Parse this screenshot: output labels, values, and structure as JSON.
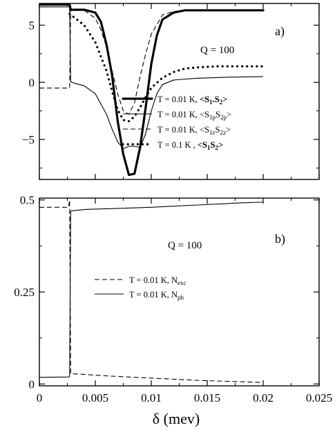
{
  "chart_data": [
    {
      "type": "line",
      "panel_label": "a)",
      "annotation": "Q = 100",
      "xlim": [
        0,
        0.025
      ],
      "ylim": [
        -8.5,
        6.9
      ],
      "x_ticks": [
        0,
        0.005,
        0.01,
        0.015,
        0.02,
        0.025
      ],
      "y_ticks": [
        5,
        0,
        -5
      ],
      "y_tick_labels": [
        "5",
        "0",
        "−5"
      ],
      "legend_position": "lower-right",
      "series": [
        {
          "legend": {
            "prefix": "T = 0.01 K,  ",
            "base1": "S",
            "sub1": "1",
            "mid": ".",
            "base2": "S",
            "sub2": "2",
            "bold": true
          },
          "style": "thick-solid",
          "x": [
            0,
            0.0027,
            0.0028,
            0.004,
            0.005,
            0.0055,
            0.006,
            0.0065,
            0.007,
            0.0075,
            0.008,
            0.0085,
            0.009,
            0.0095,
            0.01,
            0.0105,
            0.011,
            0.012,
            0.013,
            0.015,
            0.02
          ],
          "y": [
            6.8,
            6.8,
            6.35,
            6.35,
            6.1,
            5.3,
            3.3,
            0.6,
            -3.4,
            -6.3,
            -8.1,
            -8.0,
            -5.7,
            -2.2,
            1.6,
            4.1,
            5.5,
            6.1,
            6.3,
            6.3,
            6.3
          ]
        },
        {
          "legend": {
            "prefix": "T = 0.01 K, ",
            "base1": "S",
            "sub1": "1p",
            "mid": "",
            "base2": "S",
            "sub2": "2p",
            "bold": false
          },
          "style": "thin-solid",
          "x": [
            0,
            0.0026,
            0.0027,
            0.0028,
            0.0032,
            0.004,
            0.005,
            0.006,
            0.0065,
            0.007,
            0.0075,
            0.008,
            0.0085,
            0.009,
            0.0095,
            0.01,
            0.0105,
            0.011,
            0.012,
            0.014,
            0.017,
            0.02
          ],
          "y": [
            6.6,
            6.6,
            6.6,
            0.05,
            -0.1,
            -0.3,
            -1.0,
            -2.8,
            -4.1,
            -5.2,
            -5.8,
            -5.6,
            -5.6,
            -5.7,
            -4.5,
            -2.5,
            -1.0,
            -0.2,
            0.2,
            0.35,
            0.45,
            0.5
          ]
        },
        {
          "legend": {
            "prefix": "T = 0.01 K, ",
            "base1": "S",
            "sub1": "1z",
            "mid": "",
            "base2": "S",
            "sub2": "2z",
            "bold": false
          },
          "style": "dashed",
          "x": [
            0,
            0.0027,
            0.0028,
            0.004,
            0.005,
            0.0055,
            0.006,
            0.0065,
            0.007,
            0.0075,
            0.008,
            0.0085,
            0.009,
            0.0095,
            0.01,
            0.011,
            0.012,
            0.013,
            0.015,
            0.02
          ],
          "y": [
            -0.5,
            -0.5,
            6.3,
            6.3,
            5.6,
            4.6,
            3.1,
            1.0,
            -1.0,
            -2.5,
            -2.8,
            -1.8,
            0.5,
            2.5,
            4.2,
            5.9,
            6.2,
            6.3,
            6.3,
            6.3
          ]
        },
        {
          "legend": {
            "prefix": "T = 0.1 K ,  ",
            "base1": "S",
            "sub1": "1",
            "mid": "",
            "base2": "S",
            "sub2": "2",
            "bold": true
          },
          "style": "dotted",
          "x": [
            0.0027,
            0.004,
            0.005,
            0.006,
            0.0065,
            0.007,
            0.0075,
            0.008,
            0.0085,
            0.009,
            0.0095,
            0.01,
            0.011,
            0.012,
            0.013,
            0.014,
            0.016,
            0.018,
            0.02
          ],
          "y": [
            6.0,
            5.0,
            3.5,
            1.0,
            -0.8,
            -2.4,
            -3.3,
            -3.4,
            -3.0,
            -2.2,
            -1.3,
            -0.5,
            0.4,
            0.9,
            1.2,
            1.3,
            1.4,
            1.4,
            1.4
          ]
        }
      ]
    },
    {
      "type": "line",
      "panel_label": "b)",
      "annotation": "Q = 100",
      "xlabel": "δ  (mev)",
      "xlim": [
        0,
        0.025
      ],
      "ylim": [
        -0.005,
        0.505
      ],
      "x_ticks": [
        0,
        0.005,
        0.01,
        0.015,
        0.02,
        0.025
      ],
      "x_tick_labels": [
        "0",
        "0.005",
        "0.01",
        "0.015",
        "0.02",
        "0.025"
      ],
      "y_ticks": [
        0,
        0.25,
        0.5
      ],
      "y_tick_labels": [
        "0",
        "0.25",
        "0.5"
      ],
      "legend_position": "center-right",
      "series": [
        {
          "legend": {
            "prefix": "T = 0.01 K, ",
            "base": "N",
            "sub": "exc"
          },
          "style": "dashed",
          "x": [
            0,
            0.0026,
            0.0027,
            0.0028,
            0.004,
            0.006,
            0.008,
            0.01,
            0.012,
            0.014,
            0.016,
            0.018,
            0.02
          ],
          "y": [
            0.48,
            0.48,
            0.5,
            0.028,
            0.026,
            0.022,
            0.019,
            0.016,
            0.013,
            0.01,
            0.008,
            0.006,
            0.004
          ]
        },
        {
          "legend": {
            "prefix": "T  =  0.01 K, ",
            "base": "N",
            "sub": "ph"
          },
          "style": "thin-solid",
          "x": [
            0,
            0.0026,
            0.0027,
            0.0028,
            0.004,
            0.006,
            0.008,
            0.01,
            0.012,
            0.014,
            0.016,
            0.018,
            0.02
          ],
          "y": [
            0.018,
            0.019,
            0.02,
            0.47,
            0.474,
            0.476,
            0.478,
            0.48,
            0.483,
            0.486,
            0.489,
            0.492,
            0.494
          ]
        }
      ]
    }
  ]
}
